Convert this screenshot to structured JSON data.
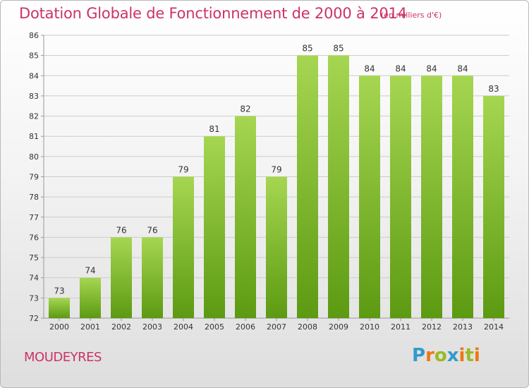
{
  "title": "Dotation Globale de Fonctionnement de 2000 à 2014",
  "subtitle": "(en milliers d'€)",
  "commune": "MOUDEYRES",
  "logo": {
    "letters": [
      "P",
      "r",
      "o",
      "x",
      "i",
      "t",
      "i"
    ],
    "colors": [
      "#3399cc",
      "#ee7711",
      "#99bb22",
      "#3399cc",
      "#ee7711",
      "#99bb22",
      "#ee7711"
    ]
  },
  "colors": {
    "bar_light": "#a6d651",
    "bar_dark": "#5c9a12",
    "grid": "#cccccc",
    "text_accent": "#cc3366"
  },
  "chart_data": {
    "type": "bar",
    "categories": [
      "2000",
      "2001",
      "2002",
      "2003",
      "2004",
      "2005",
      "2006",
      "2007",
      "2008",
      "2009",
      "2010",
      "2011",
      "2012",
      "2013",
      "2014"
    ],
    "values": [
      73,
      74,
      76,
      76,
      79,
      81,
      82,
      79,
      85,
      85,
      84,
      84,
      84,
      84,
      83
    ],
    "title": "Dotation Globale de Fonctionnement de 2000 à 2014",
    "subtitle": "(en milliers d'€)",
    "ylim": [
      72,
      86
    ],
    "yticks": [
      72,
      73,
      74,
      75,
      76,
      77,
      78,
      79,
      80,
      81,
      82,
      83,
      84,
      85,
      86
    ],
    "grid": true,
    "legend": "none"
  }
}
